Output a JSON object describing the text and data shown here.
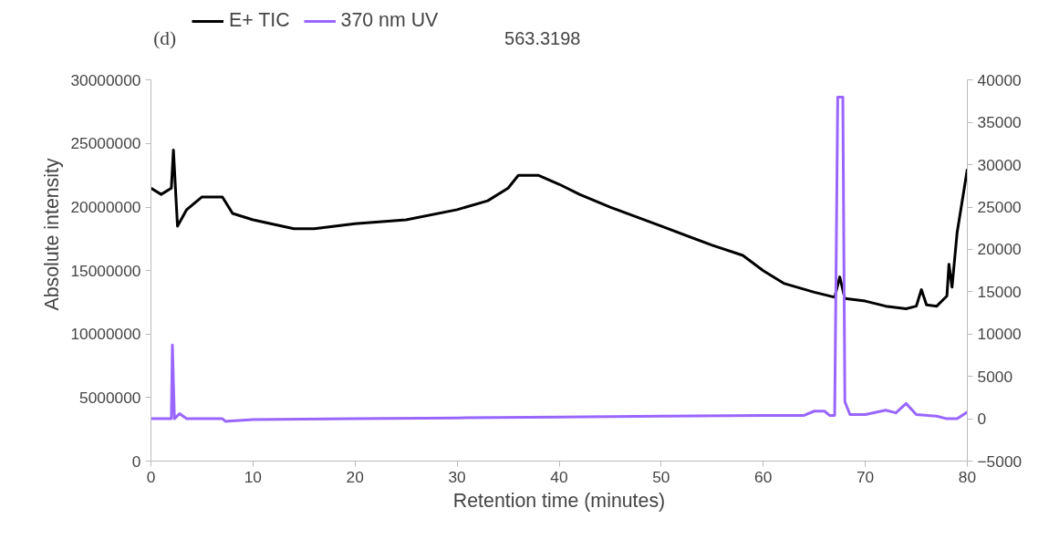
{
  "chart_data": {
    "type": "line",
    "xlabel": "Retention time (minutes)",
    "ylabel": "Absolute intensity",
    "annotations": [
      "(d)",
      "563.3198"
    ],
    "xlim": [
      0,
      80
    ],
    "xticks": [
      0,
      10,
      20,
      30,
      40,
      50,
      60,
      70,
      80
    ],
    "ylim": [
      0,
      30000000
    ],
    "yticks": [
      0,
      5000000,
      10000000,
      15000000,
      20000000,
      25000000,
      30000000
    ],
    "y2lim": [
      -5000,
      40000
    ],
    "y2ticks": [
      -5000,
      0,
      5000,
      10000,
      15000,
      20000,
      25000,
      30000,
      35000,
      40000
    ],
    "grid": false,
    "legend": "top left",
    "line_style": "solid",
    "series": [
      {
        "name": "E+ TIC",
        "color": "#000000",
        "x": [
          0,
          1,
          2,
          2.2,
          2.6,
          3.5,
          5,
          7,
          8,
          10,
          14,
          16,
          20,
          25,
          30,
          33,
          35,
          36,
          38,
          40,
          42,
          45,
          50,
          55,
          58,
          60,
          62,
          65,
          67,
          67.5,
          68,
          70,
          72,
          74,
          75,
          75.5,
          76,
          77,
          78,
          78.2,
          78.5,
          79,
          80
        ],
        "values": [
          21500000,
          21000000,
          21500000,
          24500000,
          18500000,
          19800000,
          20800000,
          20800000,
          19500000,
          19000000,
          18300000,
          18300000,
          18700000,
          19000000,
          19800000,
          20500000,
          21500000,
          22500000,
          22500000,
          21800000,
          21000000,
          20000000,
          18500000,
          17000000,
          16200000,
          15000000,
          14000000,
          13300000,
          12900000,
          14500000,
          12800000,
          12600000,
          12200000,
          12000000,
          12200000,
          13500000,
          12300000,
          12200000,
          13000000,
          15500000,
          13700000,
          18000000,
          23000000
        ]
      },
      {
        "name": "370 nm UV",
        "color": "#9966ff",
        "axis": "y2",
        "x": [
          0,
          2,
          2.1,
          2.3,
          2.8,
          3.5,
          7,
          7.3,
          10,
          20,
          30,
          40,
          50,
          60,
          64,
          65,
          66,
          66.5,
          67,
          67.3,
          67.8,
          68,
          68.5,
          70,
          72,
          73,
          74,
          75,
          77,
          78,
          79,
          80
        ],
        "values": [
          0,
          0,
          8700,
          0,
          600,
          0,
          0,
          -300,
          -100,
          0,
          100,
          200,
          300,
          400,
          400,
          900,
          900,
          400,
          400,
          38000,
          38000,
          2000,
          500,
          500,
          1000,
          700,
          1800,
          500,
          300,
          0,
          0,
          800
        ]
      }
    ]
  }
}
